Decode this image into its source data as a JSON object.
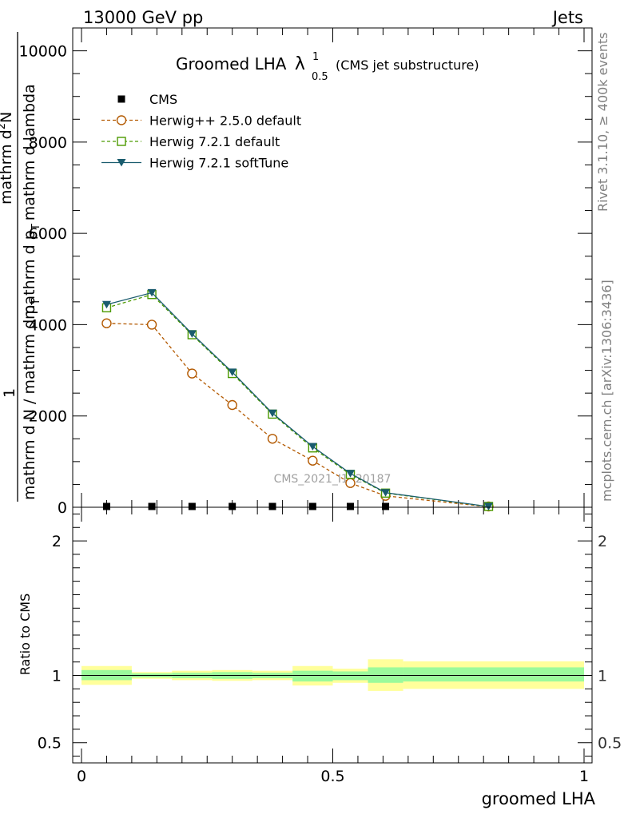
{
  "header": {
    "left": "13000 GeV pp",
    "right": "Jets"
  },
  "side_labels": {
    "rivet": "Rivet 3.1.10, ≥ 400k events",
    "mcplots": "mcplots.cern.ch [arXiv:1306:3436]"
  },
  "chart_data": [
    {
      "type": "line",
      "title_main": "Groomed LHA",
      "title_symbol": "λ",
      "title_sup": "1",
      "title_sub": "0.5",
      "title_note": "(CMS jet substructure)",
      "ylabel": {
        "frac_one": "1",
        "denominator": "mathrm d N / mathrm d p",
        "denominator_sub": "T",
        "num_line1": "mathrm d",
        "num_line1_sup": "2",
        "num_line1_rest": "N",
        "num_line2": "mathrm d p",
        "num_line2_sub": "T",
        "num_line2_rest": "mathrm d lambda"
      },
      "xlim": [
        0,
        1
      ],
      "ylim": [
        0,
        10500
      ],
      "yticks": [
        0,
        2000,
        4000,
        6000,
        8000,
        10000
      ],
      "ytick_labels": [
        "0",
        "2000",
        "4000",
        "6000",
        "8000",
        "10000"
      ],
      "watermark": "CMS_2021_I1920187",
      "legend_position": "top-left",
      "series": [
        {
          "name": "CMS",
          "color": "#000000",
          "marker": "square-filled",
          "x": [
            0.05,
            0.14,
            0.22,
            0.3,
            0.38,
            0.46,
            0.535,
            0.605,
            0.81
          ],
          "y": [
            0,
            0,
            0,
            0,
            0,
            0,
            0,
            0,
            0
          ]
        },
        {
          "name": "Herwig++ 2.5.0 default",
          "color": "#b35900",
          "marker": "circle-open",
          "dash": "dashed",
          "x": [
            0.05,
            0.14,
            0.22,
            0.3,
            0.38,
            0.46,
            0.535,
            0.605,
            0.81
          ],
          "y": [
            4030,
            4000,
            2930,
            2240,
            1500,
            1020,
            530,
            250,
            10
          ]
        },
        {
          "name": "Herwig 7.2.1 default",
          "color": "#4c9a00",
          "marker": "square-open",
          "dash": "dashed",
          "x": [
            0.05,
            0.14,
            0.22,
            0.3,
            0.38,
            0.46,
            0.535,
            0.605,
            0.81
          ],
          "y": [
            4370,
            4660,
            3780,
            2930,
            2040,
            1300,
            720,
            310,
            15
          ]
        },
        {
          "name": "Herwig 7.2.1 softTune",
          "color": "#1a5c6e",
          "marker": "triangle-down-filled",
          "dash": "solid",
          "x": [
            0.05,
            0.14,
            0.22,
            0.3,
            0.38,
            0.46,
            0.535,
            0.605,
            0.81
          ],
          "y": [
            4440,
            4700,
            3800,
            2960,
            2060,
            1330,
            740,
            320,
            15
          ]
        }
      ]
    },
    {
      "type": "area",
      "ylabel": "Ratio to CMS",
      "xlabel": "groomed LHA",
      "xlim": [
        0,
        1
      ],
      "ylim": [
        0.35,
        2.25
      ],
      "yticks": [
        0.5,
        1,
        2
      ],
      "ytick_labels": [
        "0.5",
        "1",
        "2"
      ],
      "xticks": [
        0,
        0.5,
        1
      ],
      "xtick_labels": [
        "0",
        "0.5",
        "1"
      ],
      "reference_line": 1,
      "inner_band_color": "#9bfa9b",
      "outer_band_color": "#ffff9b",
      "bins": [
        {
          "x0": 0.0,
          "x1": 0.1,
          "inner": [
            0.965,
            1.04
          ],
          "outer": [
            0.93,
            1.07
          ]
        },
        {
          "x0": 0.1,
          "x1": 0.18,
          "inner": [
            0.985,
            1.015
          ],
          "outer": [
            0.975,
            1.025
          ]
        },
        {
          "x0": 0.18,
          "x1": 0.26,
          "inner": [
            0.98,
            1.02
          ],
          "outer": [
            0.965,
            1.035
          ]
        },
        {
          "x0": 0.26,
          "x1": 0.34,
          "inner": [
            0.975,
            1.025
          ],
          "outer": [
            0.96,
            1.04
          ]
        },
        {
          "x0": 0.34,
          "x1": 0.42,
          "inner": [
            0.98,
            1.02
          ],
          "outer": [
            0.965,
            1.035
          ]
        },
        {
          "x0": 0.42,
          "x1": 0.5,
          "inner": [
            0.955,
            1.035
          ],
          "outer": [
            0.925,
            1.07
          ]
        },
        {
          "x0": 0.5,
          "x1": 0.57,
          "inner": [
            0.965,
            1.03
          ],
          "outer": [
            0.945,
            1.05
          ]
        },
        {
          "x0": 0.57,
          "x1": 0.64,
          "inner": [
            0.945,
            1.06
          ],
          "outer": [
            0.885,
            1.12
          ]
        },
        {
          "x0": 0.64,
          "x1": 1.0,
          "inner": [
            0.955,
            1.06
          ],
          "outer": [
            0.9,
            1.105
          ]
        }
      ]
    }
  ]
}
